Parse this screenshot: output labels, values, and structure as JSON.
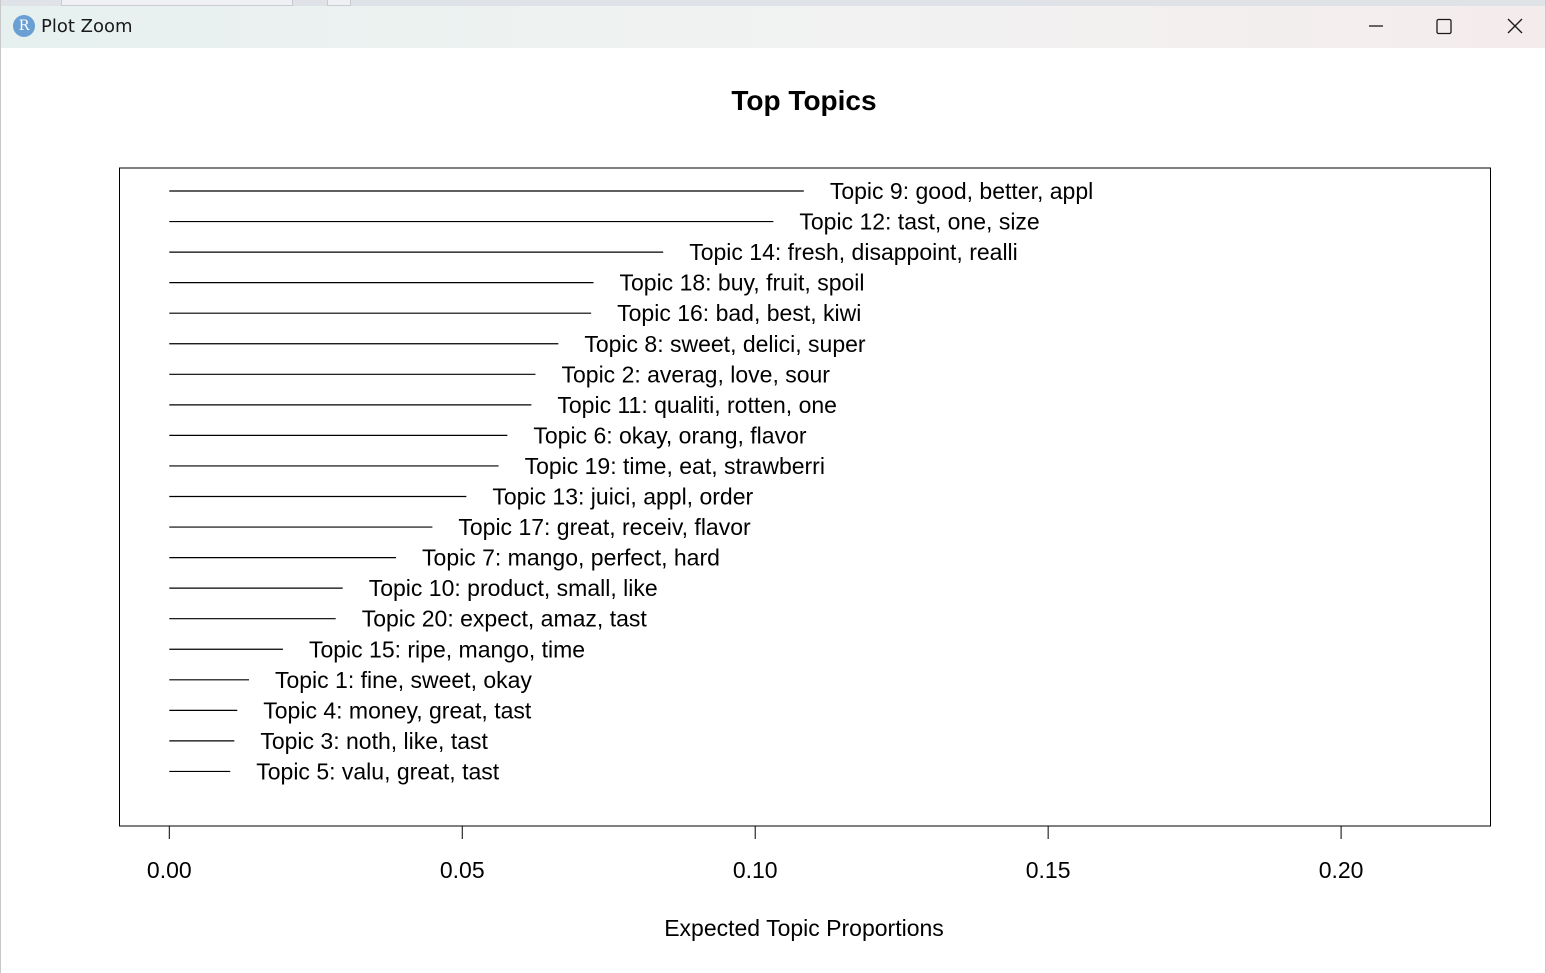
{
  "window": {
    "title": "Plot Zoom",
    "app_icon_letter": "R",
    "minimize_icon": "minimize-icon",
    "maximize_icon": "maximize-icon",
    "close_icon": "close-icon"
  },
  "chart_data": {
    "type": "bar",
    "orientation": "horizontal",
    "title": "Top Topics",
    "xlabel": "Expected Topic Proportions",
    "ylabel": "",
    "xlim": [
      -0.0085,
      0.2255
    ],
    "xticks": [
      0.0,
      0.05,
      0.1,
      0.15,
      0.2
    ],
    "xtick_labels": [
      "0.00",
      "0.05",
      "0.10",
      "0.15",
      "0.20"
    ],
    "grid": false,
    "bar_color": "#000000",
    "categories": [
      "Topic 9: good, better, appl",
      "Topic 12: tast, one, size",
      "Topic 14: fresh, disappoint, realli",
      "Topic 18: buy, fruit, spoil",
      "Topic 16: bad, best, kiwi",
      "Topic 8: sweet, delici, super",
      "Topic 2: averag, love, sour",
      "Topic 11: qualiti, rotten, one",
      "Topic 6: okay, orang, flavor",
      "Topic 19: time, eat, strawberri",
      "Topic 13: juici, appl, order",
      "Topic 17: great, receiv, flavor",
      "Topic 7: mango, perfect, hard",
      "Topic 10: product, small, like",
      "Topic 20: expect, amaz, tast",
      "Topic 15: ripe, mango, time",
      "Topic 1: fine, sweet, okay",
      "Topic 4: money, great, tast",
      "Topic 3: noth, like, tast",
      "Topic 5: valu, great, tast"
    ],
    "values": [
      0.1083,
      0.1031,
      0.0843,
      0.0724,
      0.072,
      0.0664,
      0.0625,
      0.0618,
      0.0577,
      0.0562,
      0.0507,
      0.0449,
      0.0387,
      0.0296,
      0.0284,
      0.0194,
      0.0136,
      0.0116,
      0.0111,
      0.0104
    ]
  }
}
